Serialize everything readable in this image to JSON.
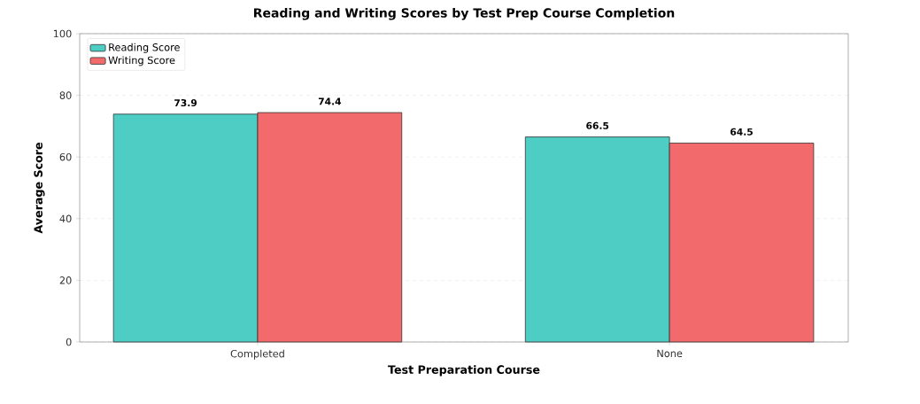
{
  "chart_data": {
    "type": "bar",
    "title": "Reading and Writing Scores by Test Prep Course Completion",
    "xlabel": "Test Preparation Course",
    "ylabel": "Average Score",
    "categories": [
      "Completed",
      "None"
    ],
    "series": [
      {
        "name": "Reading Score",
        "color": "#4ecdc4",
        "values": [
          73.9,
          66.5
        ],
        "value_labels": [
          "73.9",
          "66.5"
        ]
      },
      {
        "name": "Writing Score",
        "color": "#f26a6b",
        "values": [
          74.4,
          64.5
        ],
        "value_labels": [
          "74.4",
          "64.5"
        ]
      }
    ],
    "ylim": [
      0,
      100
    ],
    "yticks": [
      0,
      20,
      40,
      60,
      80,
      100
    ],
    "grid": "y",
    "legend": "top left"
  }
}
